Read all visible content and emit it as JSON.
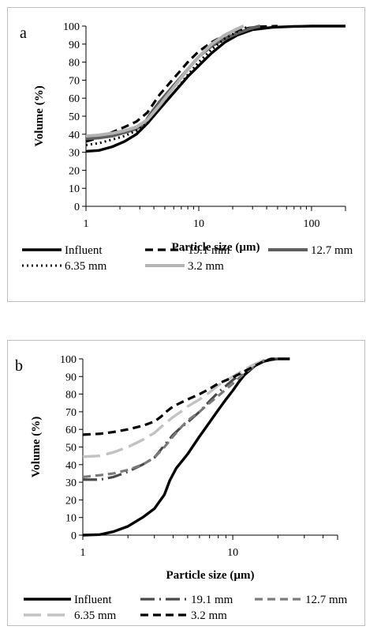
{
  "chart_data": [
    {
      "type": "line",
      "panel_label": "a",
      "xlabel": "Particle size (µm)",
      "ylabel": "Volume (%)",
      "x_scale": "log",
      "xlim": [
        1,
        200
      ],
      "ylim": [
        0,
        100
      ],
      "x_ticks": [
        1,
        10,
        100
      ],
      "x_tick_labels": [
        "1",
        "10",
        "100"
      ],
      "y_ticks": [
        0,
        10,
        20,
        30,
        40,
        50,
        60,
        70,
        80,
        90,
        100
      ],
      "y_tick_labels": [
        "0",
        "10",
        "20",
        "30",
        "40",
        "50",
        "60",
        "70",
        "80",
        "90",
        "100"
      ],
      "grid": false,
      "legend_position": "bottom",
      "series": [
        {
          "name": "Influent",
          "color": "#000000",
          "dash": "solid",
          "width": 3.4,
          "x": [
            1,
            1.3,
            1.7,
            2.2,
            2.8,
            3.5,
            4.5,
            6,
            8,
            10,
            13,
            17,
            22,
            30,
            45,
            70,
            100,
            150,
            200
          ],
          "y": [
            30.5,
            31,
            33,
            36,
            40,
            46,
            54,
            63,
            72,
            78,
            85,
            91,
            95,
            98,
            99.3,
            99.8,
            100,
            100,
            100
          ]
        },
        {
          "name": "19.1 mm",
          "color": "#000000",
          "dash": "10,6",
          "width": 3.2,
          "x": [
            1,
            1.3,
            1.7,
            2.2,
            2.8,
            3.5,
            4.5,
            6,
            8,
            10,
            13,
            17,
            22,
            28,
            35,
            50
          ],
          "y": [
            36,
            38,
            41,
            44,
            47,
            52,
            62,
            71,
            80,
            86,
            91,
            95,
            97.5,
            99,
            99.7,
            100
          ]
        },
        {
          "name": "12.7 mm",
          "color": "#5f5f5f",
          "dash": "solid",
          "width": 4,
          "x": [
            1,
            1.3,
            1.7,
            2.2,
            2.8,
            3.3,
            3.7,
            4.5,
            6,
            8,
            10,
            13,
            17,
            22,
            28,
            35
          ],
          "y": [
            37.5,
            38,
            39,
            41,
            43,
            46,
            51,
            58,
            67,
            76,
            83,
            89,
            93,
            96,
            98.5,
            100
          ]
        },
        {
          "name": "6.35 mm",
          "color": "#000000",
          "dash": "2,4",
          "width": 3,
          "x": [
            1,
            1.3,
            1.7,
            2.2,
            2.8,
            3.5,
            4.5,
            6,
            8,
            10,
            13,
            17,
            22,
            28
          ],
          "y": [
            34,
            35,
            37,
            39,
            42,
            46,
            54,
            63,
            73,
            80,
            87,
            93,
            97,
            100
          ]
        },
        {
          "name": "3.2 mm",
          "color": "#b3b3b3",
          "dash": "solid",
          "width": 4,
          "x": [
            1,
            1.3,
            1.7,
            2.2,
            2.8,
            3.5,
            4.5,
            6,
            8,
            10,
            13,
            17,
            22,
            25
          ],
          "y": [
            39,
            39.5,
            40.5,
            42,
            44,
            48,
            56,
            66,
            76,
            83,
            90,
            95,
            98.5,
            100
          ]
        }
      ]
    },
    {
      "type": "line",
      "panel_label": "b",
      "xlabel": "Particle size (µm)",
      "ylabel": "Volume (%)",
      "x_scale": "log",
      "xlim": [
        1,
        50
      ],
      "ylim": [
        0,
        100
      ],
      "x_ticks": [
        1,
        10
      ],
      "x_tick_labels": [
        "1",
        "10"
      ],
      "y_ticks": [
        0,
        10,
        20,
        30,
        40,
        50,
        60,
        70,
        80,
        90,
        100
      ],
      "y_tick_labels": [
        "0",
        "10",
        "20",
        "30",
        "40",
        "50",
        "60",
        "70",
        "80",
        "90",
        "100"
      ],
      "grid": false,
      "legend_position": "bottom",
      "series": [
        {
          "name": "Influent",
          "color": "#000000",
          "dash": "solid",
          "width": 3.4,
          "x": [
            1,
            1.3,
            1.6,
            2,
            2.5,
            3,
            3.5,
            3.8,
            4.2,
            5,
            6,
            7,
            8,
            9,
            10,
            11,
            12,
            14,
            16,
            18,
            20,
            22,
            24
          ],
          "y": [
            0,
            0.3,
            2,
            5,
            10,
            15,
            23,
            31,
            38,
            46,
            56,
            64,
            71,
            77,
            82,
            87,
            91,
            96,
            98.5,
            99.5,
            100,
            100,
            100
          ]
        },
        {
          "name": "19.1 mm",
          "color": "#4a4a4a",
          "dash": "18,6,2,6",
          "width": 3.2,
          "x": [
            1,
            1.3,
            1.6,
            2,
            2.5,
            3,
            3.5,
            4,
            4.5,
            5,
            6,
            7,
            8,
            10,
            12,
            14,
            16,
            18,
            20
          ],
          "y": [
            31.5,
            31.5,
            33,
            36,
            40,
            44,
            51,
            57,
            61,
            64,
            70,
            76,
            81,
            88,
            93,
            96.5,
            98.5,
            100,
            100
          ]
        },
        {
          "name": "12.7 mm",
          "color": "#7a7a7a",
          "dash": "10,6",
          "width": 3.2,
          "x": [
            1,
            1.3,
            1.6,
            2,
            2.5,
            3,
            3.5,
            4,
            4.5,
            5,
            6,
            7,
            8,
            10,
            12,
            14,
            16,
            18
          ],
          "y": [
            33,
            34,
            35,
            37,
            40,
            44,
            50,
            56,
            61,
            65,
            70,
            75,
            79,
            86,
            92,
            96,
            99,
            100
          ]
        },
        {
          "name": "6.35 mm",
          "color": "#c2c2c2",
          "dash": "22,8",
          "width": 3.4,
          "x": [
            1,
            1.3,
            1.6,
            2,
            2.5,
            3,
            3.5,
            4,
            4.5,
            5,
            6,
            7,
            8,
            10,
            12,
            14,
            16,
            18
          ],
          "y": [
            44.5,
            45,
            47,
            50,
            54,
            58,
            63,
            67,
            70,
            73,
            77,
            81,
            85,
            90,
            94,
            97,
            99,
            100
          ]
        },
        {
          "name": "3.2 mm",
          "color": "#000000",
          "dash": "10,6",
          "width": 3.2,
          "x": [
            1,
            1.3,
            1.6,
            2,
            2.5,
            3,
            3.3,
            3.6,
            4,
            5,
            6,
            7,
            8,
            10,
            12,
            14,
            16,
            18,
            20
          ],
          "y": [
            57,
            57.5,
            58.5,
            60,
            62,
            64.5,
            67,
            70,
            73,
            77,
            80,
            83,
            86,
            89.5,
            93,
            96,
            98.5,
            100,
            100
          ]
        }
      ]
    }
  ]
}
